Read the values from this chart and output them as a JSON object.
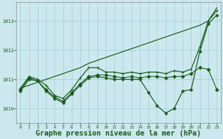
{
  "background_color": "#cce8ee",
  "grid_color": "#aad4dc",
  "line_color": "#1a5c1a",
  "xlabel": "Graphe pression niveau de la mer (hPa)",
  "xlabel_fontsize": 7.5,
  "ylim": [
    1009.5,
    1013.65
  ],
  "xlim": [
    -0.5,
    23.5
  ],
  "yticks": [
    1010,
    1011,
    1012,
    1013
  ],
  "xticks": [
    0,
    1,
    2,
    3,
    4,
    5,
    6,
    7,
    8,
    9,
    10,
    11,
    12,
    13,
    14,
    15,
    16,
    17,
    18,
    19,
    20,
    21,
    22,
    23
  ],
  "series": [
    {
      "x": [
        0,
        1,
        2,
        3,
        4,
        5,
        6,
        7,
        8,
        9,
        10,
        11,
        12,
        13,
        14,
        15,
        16,
        17,
        18,
        19,
        20,
        21,
        22,
        23
      ],
      "y": [
        1010.7,
        1010.8,
        1010.9,
        1011.0,
        1011.1,
        1011.2,
        1011.3,
        1011.4,
        1011.55,
        1011.65,
        1011.75,
        1011.85,
        1011.95,
        1012.05,
        1012.15,
        1012.25,
        1012.35,
        1012.45,
        1012.55,
        1012.65,
        1012.75,
        1012.85,
        1013.0,
        1013.45
      ],
      "marker": null,
      "lw": 0.9
    },
    {
      "x": [
        0,
        1,
        2,
        3,
        4,
        5,
        6,
        7,
        8,
        9,
        10,
        11,
        12,
        13,
        14,
        15,
        16,
        17,
        18,
        19,
        20,
        21,
        22,
        23
      ],
      "y": [
        1010.7,
        1011.1,
        1011.0,
        1010.8,
        1010.45,
        1010.35,
        1010.65,
        1011.05,
        1011.4,
        1011.4,
        1011.25,
        1011.25,
        1011.2,
        1011.25,
        1011.2,
        1011.25,
        1011.25,
        1011.2,
        1011.3,
        1011.25,
        1011.35,
        1012.1,
        1013.0,
        1013.35
      ],
      "marker": "+",
      "lw": 0.9
    },
    {
      "x": [
        0,
        1,
        2,
        3,
        4,
        5,
        6,
        7,
        8,
        9,
        10,
        11,
        12,
        13,
        14,
        15,
        16,
        17,
        18,
        19,
        20,
        21,
        22,
        23
      ],
      "y": [
        1010.65,
        1011.05,
        1010.95,
        1010.65,
        1010.4,
        1010.25,
        1010.55,
        1010.85,
        1011.1,
        1011.15,
        1011.15,
        1011.1,
        1011.05,
        1011.1,
        1011.05,
        1011.1,
        1011.1,
        1011.05,
        1011.1,
        1011.1,
        1011.2,
        1011.4,
        1011.35,
        1010.65
      ],
      "marker": "D",
      "lw": 0.8
    },
    {
      "x": [
        0,
        1,
        2,
        3,
        4,
        5,
        6,
        7,
        8,
        9,
        10,
        11,
        12,
        13,
        14,
        15,
        16,
        17,
        18,
        19,
        20,
        21,
        22,
        23
      ],
      "y": [
        1010.6,
        1011.0,
        1010.95,
        1010.6,
        1010.35,
        1010.2,
        1010.5,
        1010.8,
        1011.05,
        1011.1,
        1011.05,
        1011.0,
        1011.0,
        1011.0,
        1011.0,
        1010.55,
        1010.1,
        1009.85,
        1010.0,
        1010.6,
        1010.65,
        1011.95,
        1012.9,
        1013.2
      ],
      "marker": "o",
      "lw": 0.9
    }
  ]
}
